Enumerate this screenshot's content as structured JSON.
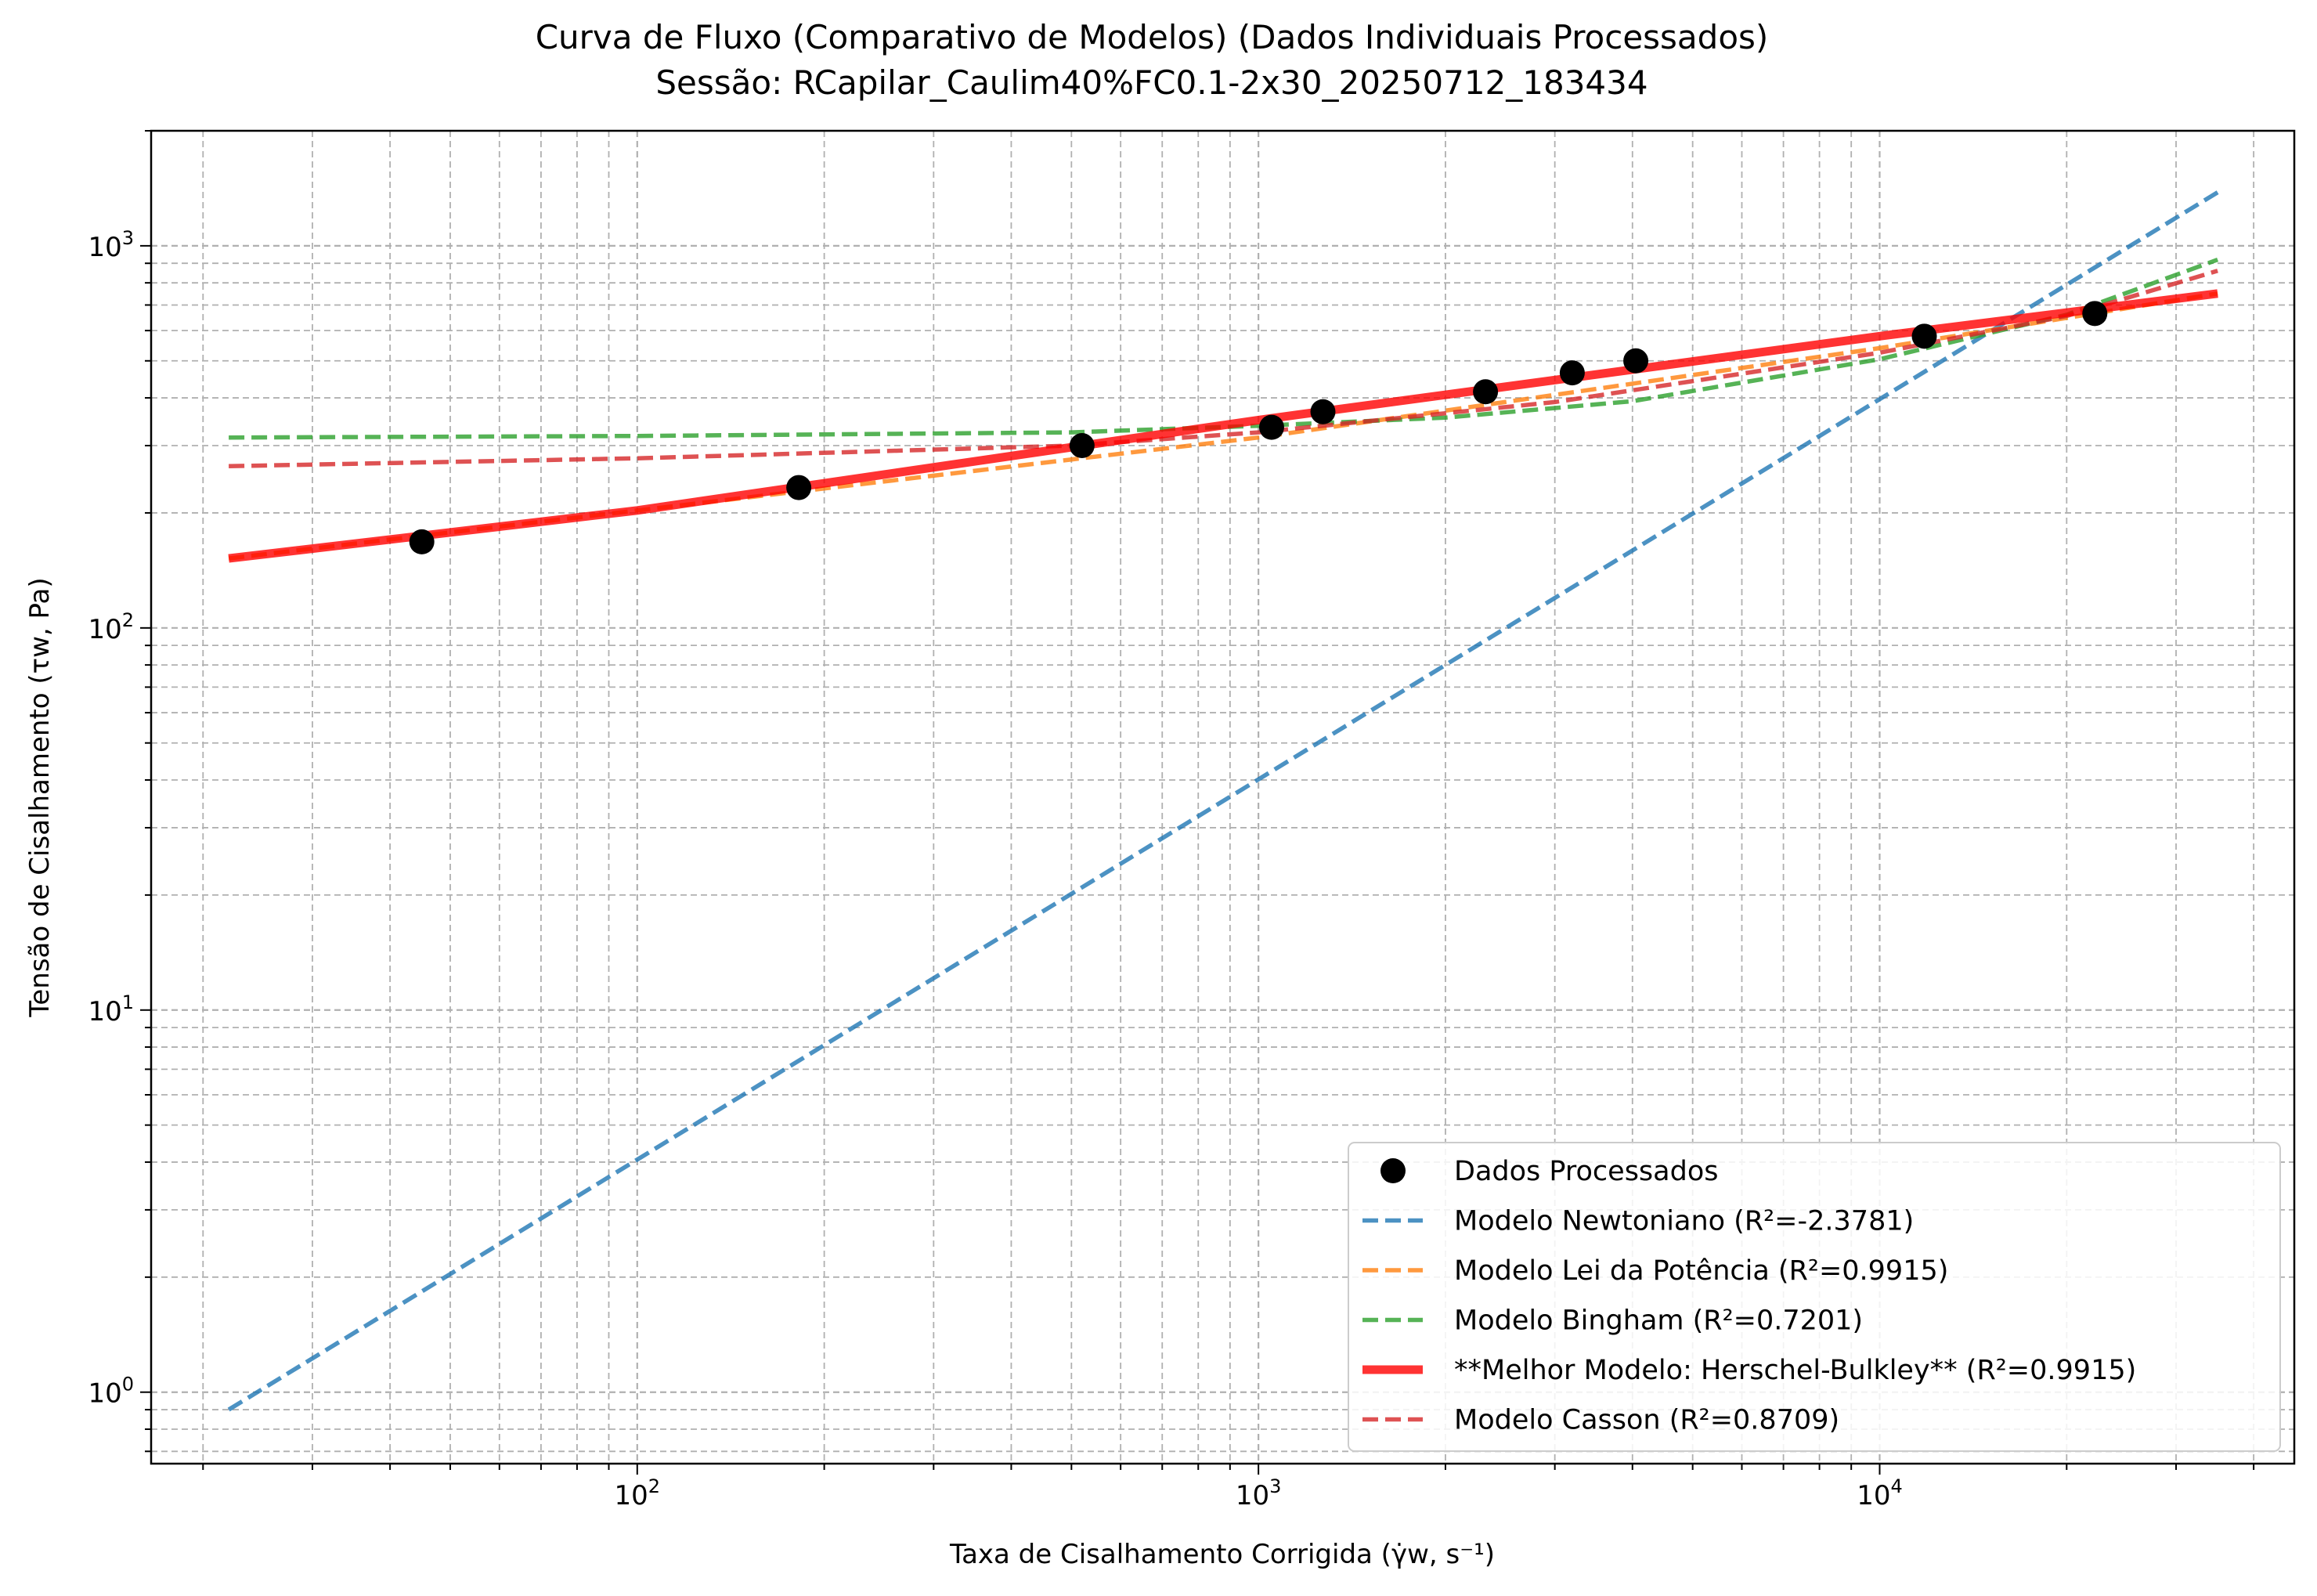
{
  "chart_data": {
    "type": "scatter",
    "title": "Curva de Fluxo (Comparativo de Modelos) (Dados Individuais Processados)",
    "subtitle": "Sessão: RCapilar_Caulim40%FC0.1-2x30_20250712_183434",
    "xlabel": "Taxa de Cisalhamento Corrigida (γ̇w, s⁻¹)",
    "ylabel": "Tensão de Cisalhamento (τw, Pa)",
    "xscale": "log",
    "yscale": "log",
    "xlim": [
      16.5,
      46500
    ],
    "ylim": [
      0.65,
      2000
    ],
    "x_ticks": [
      {
        "value": 100,
        "base": "10",
        "exp": "2"
      },
      {
        "value": 1000,
        "base": "10",
        "exp": "3"
      },
      {
        "value": 10000,
        "base": "10",
        "exp": "4"
      }
    ],
    "y_ticks": [
      {
        "value": 1,
        "base": "10",
        "exp": "0"
      },
      {
        "value": 10,
        "base": "10",
        "exp": "1"
      },
      {
        "value": 100,
        "base": "10",
        "exp": "2"
      },
      {
        "value": 1000,
        "base": "10",
        "exp": "3"
      }
    ],
    "grid": true,
    "legend_position": "lower-right",
    "series": [
      {
        "name": "Dados Processados",
        "kind": "points",
        "color": "#000000",
        "x": [
          45,
          182,
          520,
          1050,
          1270,
          2320,
          3200,
          4050,
          11800,
          22200
        ],
        "y": [
          168,
          233,
          300,
          335,
          368,
          415,
          465,
          500,
          580,
          665
        ]
      },
      {
        "name": "Modelo Newtoniano (R²=-2.3781)",
        "kind": "dashed",
        "color": "#1f77b4",
        "x": [
          22,
          35000
        ],
        "y": [
          0.9,
          1380
        ]
      },
      {
        "name": "Modelo Lei da Potência (R²=0.9915)",
        "kind": "dashed",
        "color": "#ff7f0e",
        "x": [
          22,
          100,
          1000,
          10000,
          35000
        ],
        "y": [
          152,
          203,
          315,
          540,
          750
        ]
      },
      {
        "name": "Modelo Bingham (R²=0.7201)",
        "kind": "dashed",
        "color": "#2ca02c",
        "x": [
          22,
          100,
          500,
          1000,
          2000,
          4000,
          10000,
          20000,
          35000
        ],
        "y": [
          315,
          318,
          325,
          338,
          355,
          392,
          505,
          660,
          920
        ]
      },
      {
        "name": "**Melhor Modelo: Herschel-Bulkley** (R²=0.9915)",
        "kind": "solid",
        "color": "#ff0000",
        "x": [
          22,
          100,
          1000,
          10000,
          35000
        ],
        "y": [
          152,
          203,
          350,
          580,
          750
        ]
      },
      {
        "name": "Modelo Casson (R²=0.8709)",
        "kind": "dashed",
        "color": "#d62728",
        "x": [
          22,
          100,
          500,
          1000,
          3000,
          10000,
          20000,
          35000
        ],
        "y": [
          265,
          278,
          300,
          325,
          390,
          525,
          655,
          860
        ]
      }
    ]
  }
}
